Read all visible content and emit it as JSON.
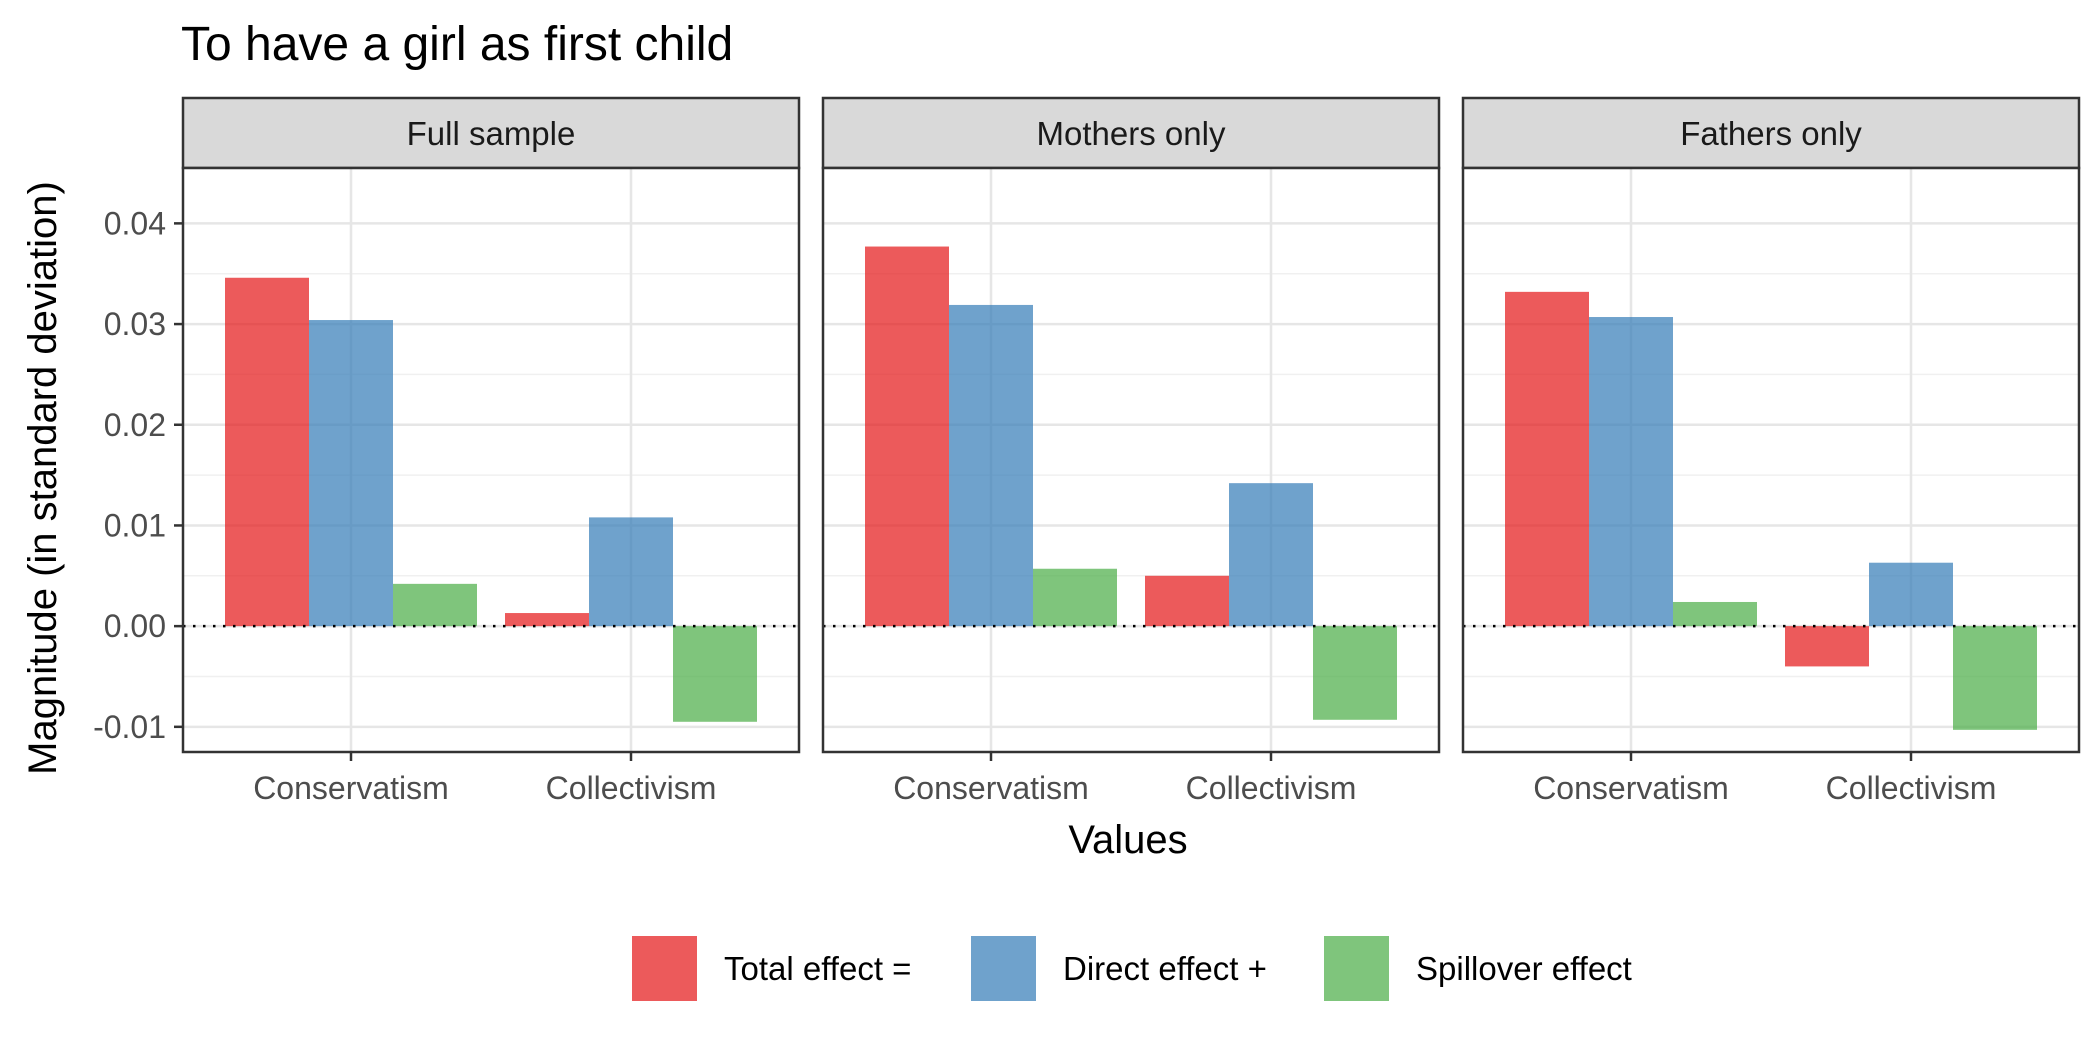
{
  "chart_data": {
    "type": "bar",
    "title": "To have a girl as first child",
    "xlabel": "Values",
    "ylabel": "Magnitude (in standard deviation)",
    "ylim": [
      -0.0125,
      0.0455
    ],
    "yticks": [
      -0.01,
      0.0,
      0.01,
      0.02,
      0.03,
      0.04
    ],
    "ytick_labels": [
      "-0.01",
      "0.00",
      "0.01",
      "0.02",
      "0.03",
      "0.04"
    ],
    "grid": true,
    "zero_line": "dotted",
    "legend_position": "bottom",
    "categories": [
      "Conservatism",
      "Collectivism"
    ],
    "series_meta": [
      {
        "name": "Total effect =",
        "color": "#E41A1C"
      },
      {
        "name": "Direct effect +",
        "color": "#377EB8"
      },
      {
        "name": "Spillover effect",
        "color": "#4DAF4A"
      }
    ],
    "panels": [
      {
        "label": "Full sample",
        "series": [
          {
            "name": "Total effect =",
            "values": [
              0.0346,
              0.0013
            ]
          },
          {
            "name": "Direct effect +",
            "values": [
              0.0304,
              0.0108
            ]
          },
          {
            "name": "Spillover effect",
            "values": [
              0.0042,
              -0.0095
            ]
          }
        ]
      },
      {
        "label": "Mothers only",
        "series": [
          {
            "name": "Total effect =",
            "values": [
              0.0377,
              0.005
            ]
          },
          {
            "name": "Direct effect +",
            "values": [
              0.0319,
              0.0142
            ]
          },
          {
            "name": "Spillover effect",
            "values": [
              0.0057,
              -0.0093
            ]
          }
        ]
      },
      {
        "label": "Fathers only",
        "series": [
          {
            "name": "Total effect =",
            "values": [
              0.0332,
              -0.004
            ]
          },
          {
            "name": "Direct effect +",
            "values": [
              0.0307,
              0.0063
            ]
          },
          {
            "name": "Spillover effect",
            "values": [
              0.0024,
              -0.0103
            ]
          }
        ]
      }
    ]
  }
}
